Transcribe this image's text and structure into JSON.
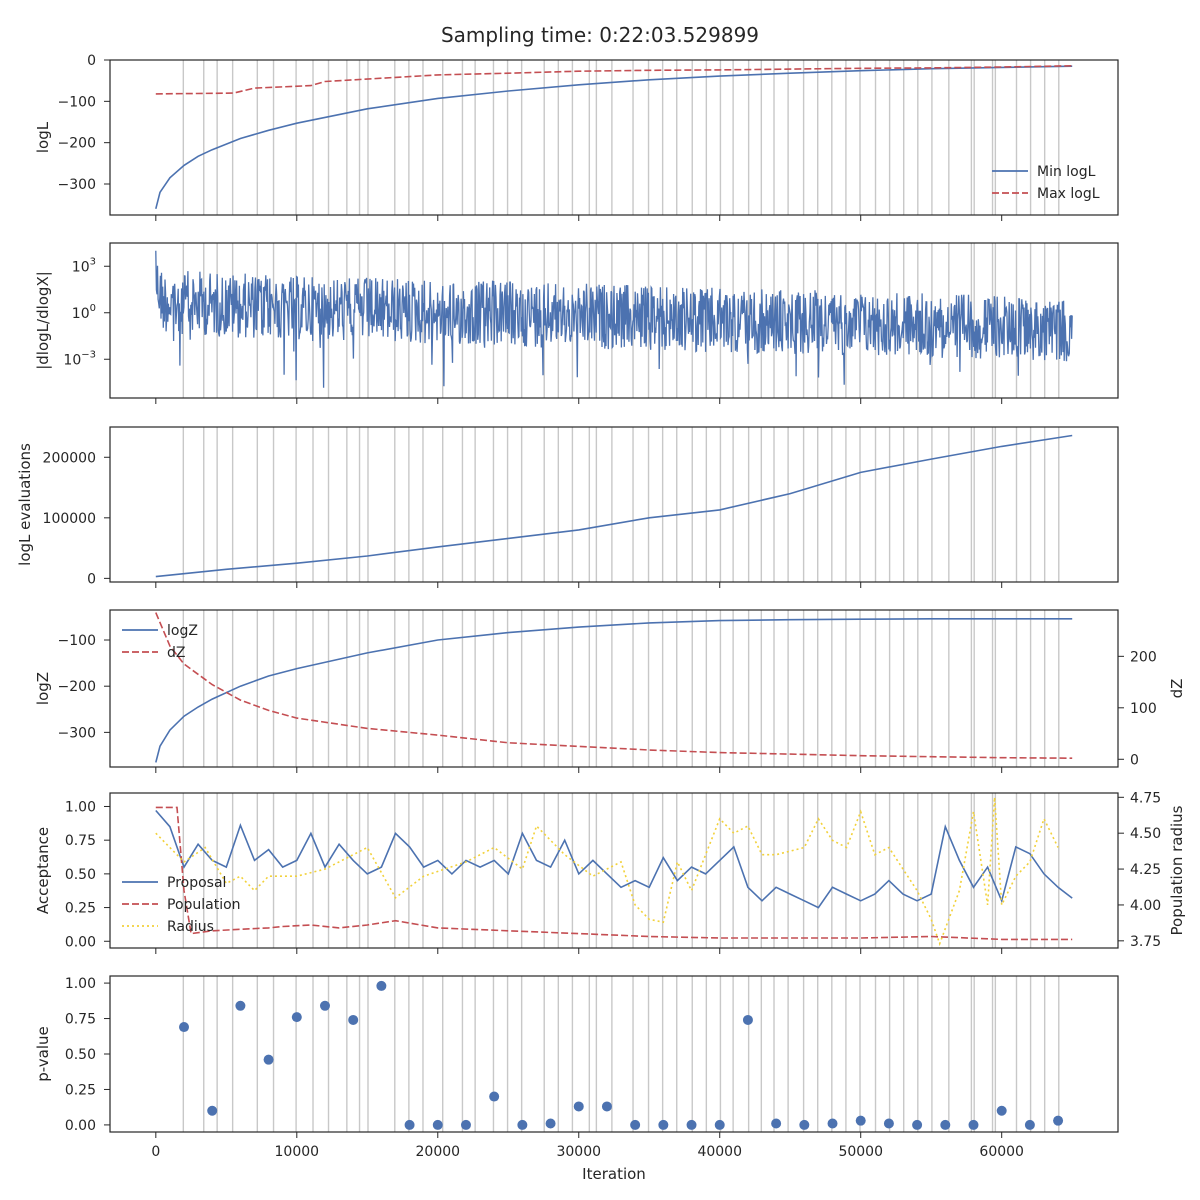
{
  "title": "Sampling time: 0:22:03.529899",
  "chart_data": [
    {
      "id": "logl",
      "type": "line",
      "ylabel": "logL",
      "xlim": [
        -3250,
        68250
      ],
      "ylim": [
        -375,
        0
      ],
      "yticks": [
        0,
        -100,
        -200,
        -300
      ],
      "ytick_labels": [
        "0",
        "−100",
        "−200",
        "−300"
      ],
      "legend": {
        "placement": "lower-right"
      },
      "series": [
        {
          "name": "Min logL",
          "color": "#4c72b0",
          "style": "solid",
          "x": [
            0,
            300,
            1000,
            2000,
            3000,
            4000,
            6000,
            8000,
            10000,
            15000,
            20000,
            25000,
            30000,
            35000,
            40000,
            45000,
            50000,
            55000,
            60000,
            65000
          ],
          "y": [
            -360,
            -320,
            -285,
            -255,
            -233,
            -217,
            -190,
            -170,
            -153,
            -118,
            -93,
            -75,
            -60,
            -48,
            -39,
            -32,
            -26,
            -21,
            -18,
            -15
          ]
        },
        {
          "name": "Max logL",
          "color": "#c44e52",
          "style": "dashed",
          "x": [
            0,
            5500,
            7000,
            11000,
            12000,
            17000,
            20000,
            25000,
            30000,
            35000,
            40000,
            45000,
            50000,
            55000,
            60000,
            65000
          ],
          "y": [
            -82,
            -80,
            -68,
            -62,
            -52,
            -42,
            -36,
            -32,
            -27,
            -25,
            -24,
            -22,
            -20,
            -19,
            -17,
            -14
          ]
        }
      ]
    },
    {
      "id": "dlogl",
      "type": "line",
      "ylabel": "|dlogL/dlogX|",
      "ylog": true,
      "xlim": [
        -3250,
        68250
      ],
      "ylim_log10": [
        -5.5,
        4.5
      ],
      "yticks": [
        "10^3",
        "10^0",
        "10^−3"
      ],
      "series": [
        {
          "name": "",
          "color": "#4c72b0",
          "style": "solid",
          "x": [
            0,
            500,
            5000,
            10000,
            20000,
            30000,
            40000,
            50000,
            60000,
            65000
          ],
          "upper_log10": [
            4.0,
            2.8,
            2.6,
            2.4,
            2.2,
            1.9,
            1.6,
            1.4,
            1.1,
            0.9
          ],
          "lower_log10": [
            1.0,
            -0.5,
            -0.8,
            -1.0,
            -1.3,
            -1.5,
            -1.8,
            -2.0,
            -2.2,
            -2.5
          ],
          "min_log10": -5.0
        }
      ]
    },
    {
      "id": "evals",
      "type": "line",
      "ylabel": "logL evaluations",
      "xlim": [
        -3250,
        68250
      ],
      "ylim": [
        -6000,
        250000
      ],
      "yticks": [
        0,
        100000,
        200000
      ],
      "ytick_labels": [
        "0",
        "100000",
        "200000"
      ],
      "series": [
        {
          "name": "",
          "color": "#4c72b0",
          "style": "solid",
          "x": [
            0,
            5000,
            10000,
            15000,
            20000,
            25000,
            30000,
            35000,
            40000,
            45000,
            50000,
            55000,
            60000,
            65000
          ],
          "y": [
            3000,
            15000,
            25000,
            37000,
            52000,
            66000,
            80000,
            100000,
            113000,
            140000,
            175000,
            197000,
            218000,
            236000
          ]
        }
      ]
    },
    {
      "id": "logz",
      "type": "line",
      "ylabel": "logZ",
      "ylabel_right": "dZ",
      "xlim": [
        -3250,
        68250
      ],
      "ylim": [
        -375,
        -35
      ],
      "yticks": [
        -100,
        -200,
        -300
      ],
      "ytick_labels": [
        "−100",
        "−200",
        "−300"
      ],
      "ylim_right": [
        -15,
        290
      ],
      "yticks_right": [
        0,
        100,
        200
      ],
      "ytick_labels_right": [
        "0",
        "100",
        "200"
      ],
      "legend": {
        "placement": "upper-left"
      },
      "series": [
        {
          "name": "logZ",
          "color": "#4c72b0",
          "style": "solid",
          "axis": "left",
          "x": [
            0,
            300,
            1000,
            2000,
            3000,
            4000,
            6000,
            8000,
            10000,
            15000,
            20000,
            25000,
            30000,
            35000,
            40000,
            45000,
            50000,
            55000,
            60000,
            65000
          ],
          "y": [
            -365,
            -330,
            -295,
            -265,
            -245,
            -228,
            -200,
            -178,
            -162,
            -128,
            -100,
            -84,
            -72,
            -63,
            -58,
            -56,
            -55,
            -54,
            -54,
            -54
          ]
        },
        {
          "name": "dZ",
          "color": "#c44e52",
          "style": "dashed",
          "axis": "right",
          "x": [
            0,
            1000,
            2000,
            4000,
            6000,
            8000,
            10000,
            15000,
            20000,
            25000,
            30000,
            35000,
            40000,
            45000,
            50000,
            55000,
            60000,
            65000
          ],
          "y": [
            285,
            220,
            185,
            145,
            115,
            95,
            80,
            60,
            47,
            32,
            25,
            18,
            13,
            10,
            7,
            5,
            3,
            2
          ]
        }
      ]
    },
    {
      "id": "acceptance",
      "type": "line",
      "ylabel": "Acceptance",
      "ylabel_right": "Population radius",
      "xlim": [
        -3250,
        68250
      ],
      "ylim": [
        -0.05,
        1.1
      ],
      "yticks": [
        0,
        0.25,
        0.5,
        0.75,
        1.0
      ],
      "ytick_labels": [
        "0.00",
        "0.25",
        "0.50",
        "0.75",
        "1.00"
      ],
      "ylim_right": [
        3.7,
        4.78
      ],
      "yticks_right": [
        3.75,
        4.0,
        4.25,
        4.5,
        4.75
      ],
      "ytick_labels_right": [
        "3.75",
        "4.00",
        "4.25",
        "4.50",
        "4.75"
      ],
      "legend": {
        "placement": "lower-left"
      },
      "series": [
        {
          "name": "Proposal",
          "color": "#4c72b0",
          "style": "solid",
          "axis": "left",
          "x": [
            0,
            1000,
            2000,
            3000,
            4000,
            5000,
            6000,
            7000,
            8000,
            9000,
            10000,
            11000,
            12000,
            13000,
            14000,
            15000,
            16000,
            17000,
            18000,
            19000,
            20000,
            21000,
            22000,
            23000,
            24000,
            25000,
            26000,
            27000,
            28000,
            29000,
            30000,
            31000,
            32000,
            33000,
            34000,
            35000,
            36000,
            37000,
            38000,
            39000,
            40000,
            41000,
            42000,
            43000,
            44000,
            45000,
            46000,
            47000,
            48000,
            49000,
            50000,
            51000,
            52000,
            53000,
            54000,
            55000,
            56000,
            57000,
            58000,
            59000,
            60000,
            61000,
            62000,
            63000,
            64000,
            65000
          ],
          "y": [
            0.97,
            0.85,
            0.55,
            0.72,
            0.6,
            0.55,
            0.86,
            0.6,
            0.68,
            0.55,
            0.6,
            0.8,
            0.55,
            0.72,
            0.6,
            0.5,
            0.55,
            0.8,
            0.7,
            0.55,
            0.6,
            0.5,
            0.6,
            0.55,
            0.6,
            0.5,
            0.8,
            0.6,
            0.55,
            0.75,
            0.5,
            0.6,
            0.5,
            0.4,
            0.45,
            0.4,
            0.62,
            0.45,
            0.55,
            0.5,
            0.6,
            0.7,
            0.4,
            0.3,
            0.4,
            0.35,
            0.3,
            0.25,
            0.4,
            0.35,
            0.3,
            0.35,
            0.45,
            0.35,
            0.3,
            0.35,
            0.85,
            0.6,
            0.4,
            0.55,
            0.3,
            0.7,
            0.65,
            0.5,
            0.4,
            0.32
          ]
        },
        {
          "name": "Population",
          "color": "#c44e52",
          "style": "dashed",
          "axis": "right",
          "x": [
            0,
            1500,
            2000,
            2500,
            4000,
            6000,
            8000,
            9000,
            11000,
            13000,
            15000,
            17000,
            20000,
            25000,
            30000,
            35000,
            40000,
            45000,
            50000,
            55000,
            60000,
            65000
          ],
          "y": [
            4.68,
            4.68,
            4.1,
            3.8,
            3.82,
            3.83,
            3.84,
            3.85,
            3.86,
            3.84,
            3.86,
            3.89,
            3.84,
            3.82,
            3.8,
            3.78,
            3.77,
            3.77,
            3.77,
            3.78,
            3.76,
            3.76
          ]
        },
        {
          "name": "Radius",
          "color": "#f2d13a",
          "style": "dotted",
          "axis": "right",
          "x": [
            0,
            2000,
            3500,
            5000,
            6000,
            7000,
            8000,
            10000,
            12000,
            14000,
            15000,
            17000,
            19000,
            22000,
            24000,
            26000,
            27000,
            29000,
            31000,
            33000,
            34000,
            35000,
            36000,
            37000,
            38000,
            40000,
            41000,
            42000,
            43000,
            44000,
            46000,
            47000,
            48000,
            49000,
            50000,
            51000,
            52000,
            54000,
            55000,
            55600,
            57000,
            58000,
            59000,
            59500,
            60000,
            61000,
            62000,
            63000,
            64000
          ],
          "y": [
            4.5,
            4.3,
            4.4,
            4.15,
            4.2,
            4.1,
            4.2,
            4.2,
            4.25,
            4.35,
            4.4,
            4.05,
            4.2,
            4.3,
            4.4,
            4.25,
            4.55,
            4.35,
            4.2,
            4.3,
            4.0,
            3.9,
            3.88,
            4.3,
            4.1,
            4.6,
            4.5,
            4.55,
            4.35,
            4.35,
            4.4,
            4.6,
            4.45,
            4.4,
            4.65,
            4.35,
            4.4,
            4.1,
            3.9,
            3.73,
            4.1,
            4.65,
            4.0,
            4.75,
            4.0,
            4.2,
            4.3,
            4.6,
            4.4
          ]
        }
      ]
    },
    {
      "id": "pvalue",
      "type": "scatter",
      "ylabel": "p-value",
      "xlabel": "Iteration",
      "xlim": [
        -3250,
        68250
      ],
      "ylim": [
        -0.05,
        1.05
      ],
      "yticks": [
        0,
        0.25,
        0.5,
        0.75,
        1.0
      ],
      "ytick_labels": [
        "0.00",
        "0.25",
        "0.50",
        "0.75",
        "1.00"
      ],
      "xticks": [
        0,
        10000,
        20000,
        30000,
        40000,
        50000,
        60000
      ],
      "xtick_labels": [
        "0",
        "10000",
        "20000",
        "30000",
        "40000",
        "50000",
        "60000"
      ],
      "series": [
        {
          "name": "",
          "color": "#4c72b0",
          "x": [
            2000,
            4000,
            6000,
            8000,
            10000,
            12000,
            14000,
            16000,
            18000,
            20000,
            22000,
            24000,
            26000,
            28000,
            30000,
            32000,
            34000,
            36000,
            38000,
            40000,
            42000,
            44000,
            46000,
            48000,
            50000,
            52000,
            54000,
            56000,
            58000,
            60000,
            62000,
            64000
          ],
          "y": [
            0.69,
            0.1,
            0.84,
            0.46,
            0.76,
            0.84,
            0.74,
            0.98,
            0.0,
            0.0,
            0.0,
            0.2,
            0.0,
            0.01,
            0.13,
            0.13,
            0.0,
            0.0,
            0.0,
            0.0,
            0.74,
            0.01,
            0.0,
            0.01,
            0.03,
            0.01,
            0.0,
            0.0,
            0.0,
            0.1,
            0.0,
            0.03
          ]
        }
      ]
    }
  ],
  "insertion_lines": [
    1950,
    3400,
    4350,
    5450,
    7200,
    8350,
    9950,
    11150,
    12250,
    13550,
    14450,
    15050,
    16950,
    17950,
    18950,
    20350,
    21750,
    22650,
    23950,
    24950,
    25950,
    27550,
    28550,
    29550,
    30750,
    31250,
    32350,
    33850,
    34950,
    35950,
    36950,
    38050,
    39050,
    40050,
    40950,
    42050,
    42950,
    43850,
    44850,
    45950,
    46950,
    47950,
    48950,
    49950,
    51050,
    52050,
    53050,
    54050,
    55050,
    56250,
    57850,
    58050,
    59350,
    59550,
    61050,
    62050,
    63050,
    64050
  ]
}
